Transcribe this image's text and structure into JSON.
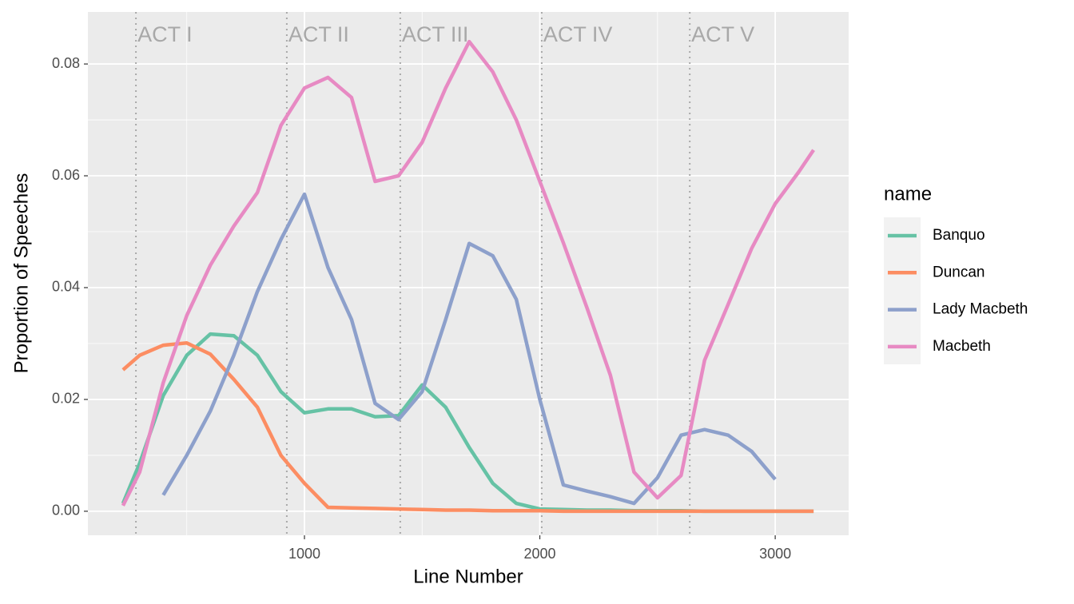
{
  "chart_data": {
    "type": "line",
    "x_label": "Line Number",
    "y_label": "Proportion of Speeches",
    "legend_title": "name",
    "legend_position": "right",
    "grid": true,
    "xlim": [
      80,
      3312
    ],
    "ylim": [
      -0.0043,
      0.0893
    ],
    "xticks": [
      1000,
      2000,
      3000
    ],
    "yticks": [
      {
        "value": 0,
        "label": "0.00"
      },
      0.02,
      0.04,
      0.06,
      0.08
    ],
    "x_minor_grid": [
      500,
      1500,
      2500
    ],
    "y_minor_grid": [
      0.01,
      0.03,
      0.05,
      0.07
    ],
    "annotations": [
      {
        "x": 284,
        "label": "ACT I"
      },
      {
        "x": 925,
        "label": "ACT II"
      },
      {
        "x": 1407,
        "label": "ACT III"
      },
      {
        "x": 2008,
        "label": "ACT IV"
      },
      {
        "x": 2637,
        "label": "ACT V"
      }
    ],
    "x": [
      229,
      300,
      400,
      500,
      600,
      700,
      800,
      900,
      1000,
      1100,
      1200,
      1300,
      1400,
      1500,
      1600,
      1700,
      1800,
      1900,
      2000,
      2100,
      2200,
      2300,
      2400,
      2500,
      2600,
      2700,
      2800,
      2900,
      3000,
      3100,
      3163
    ],
    "series": [
      {
        "name": "Banquo",
        "color": "#66c2a5",
        "values": [
          0.0014,
          0.0086,
          0.0207,
          0.0279,
          0.0317,
          0.0314,
          0.0279,
          0.0214,
          0.0176,
          0.0183,
          0.0183,
          0.0169,
          0.0171,
          0.0226,
          0.0186,
          0.0114,
          0.005,
          0.0014,
          0.0004,
          0.0003,
          0.0002,
          0.0002,
          0.0001,
          0.0001,
          0.0001,
          0,
          0,
          0,
          0,
          0,
          0
        ]
      },
      {
        "name": "Duncan",
        "color": "#fc8d62",
        "values": [
          0.0253,
          0.0279,
          0.0297,
          0.0301,
          0.0281,
          0.0236,
          0.0186,
          0.01,
          0.005,
          0.0007,
          0.0006,
          0.0005,
          0.0004,
          0.0003,
          0.0002,
          0.0002,
          0.0001,
          0.0001,
          0.0001,
          0,
          0,
          0,
          0,
          0,
          0,
          0,
          0,
          0,
          0,
          0,
          0
        ]
      },
      {
        "name": "Lady Macbeth",
        "color": "#8da0cb",
        "values": [
          null,
          null,
          0.0029,
          0.01,
          0.0179,
          0.0279,
          0.0393,
          0.0486,
          0.0567,
          0.0436,
          0.0343,
          0.0193,
          0.0164,
          0.0214,
          0.0343,
          0.0479,
          0.0457,
          0.0379,
          0.02,
          0.0047,
          0.0036,
          0.0026,
          0.0014,
          0.006,
          0.0136,
          0.0146,
          0.0136,
          0.0107,
          0.0057,
          null,
          null
        ]
      },
      {
        "name": "Macbeth",
        "color": "#e78ac3",
        "values": [
          0.001,
          0.007,
          0.023,
          0.035,
          0.044,
          0.051,
          0.057,
          0.069,
          0.0757,
          0.0776,
          0.074,
          0.059,
          0.06,
          0.066,
          0.0757,
          0.084,
          0.0786,
          0.07,
          0.059,
          0.048,
          0.0364,
          0.0243,
          0.007,
          0.0024,
          0.0064,
          0.027,
          0.037,
          0.047,
          0.055,
          0.0607,
          0.0646
        ]
      }
    ]
  }
}
